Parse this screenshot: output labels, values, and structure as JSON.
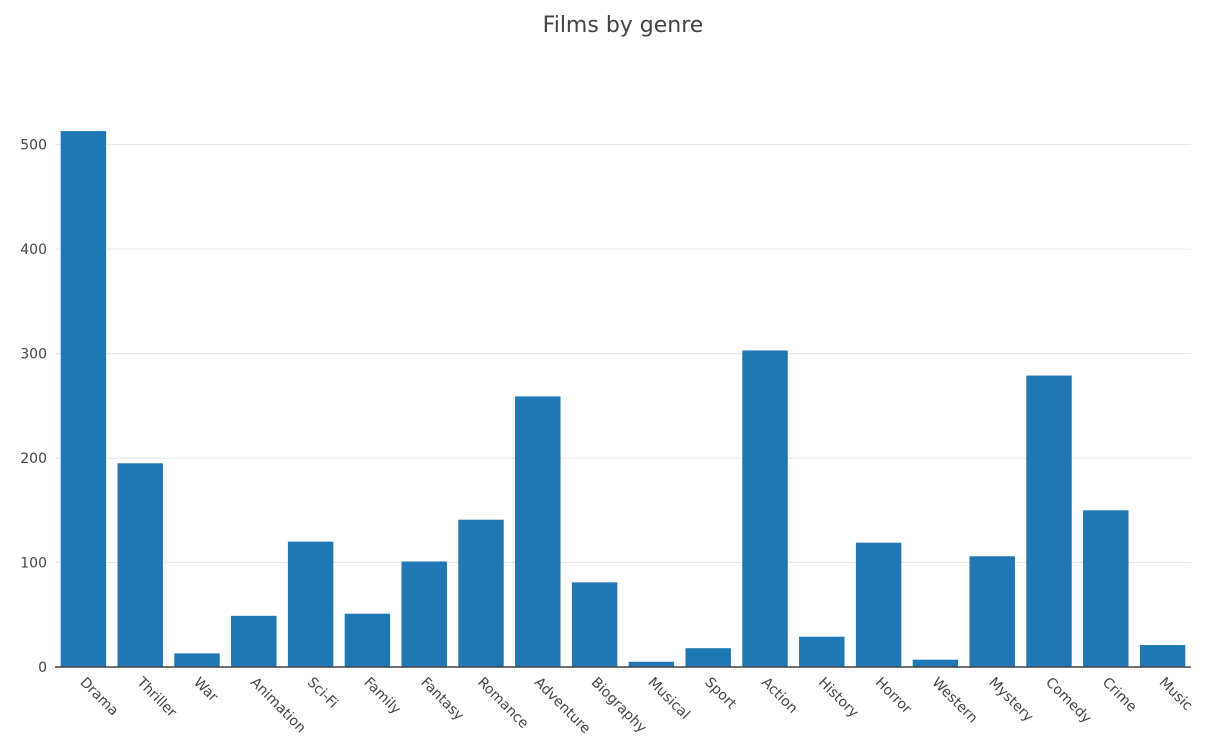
{
  "chart_data": {
    "type": "bar",
    "title": "Films by genre",
    "xlabel": "",
    "ylabel": "",
    "categories": [
      "Drama",
      "Thriller",
      "War",
      "Animation",
      "Sci-Fi",
      "Family",
      "Fantasy",
      "Romance",
      "Adventure",
      "Biography",
      "Musical",
      "Sport",
      "Action",
      "History",
      "Horror",
      "Western",
      "Mystery",
      "Comedy",
      "Crime",
      "Music"
    ],
    "values": [
      513,
      195,
      13,
      49,
      120,
      51,
      101,
      141,
      259,
      81,
      5,
      18,
      303,
      29,
      119,
      7,
      106,
      279,
      150,
      21
    ],
    "ylim": [
      0,
      560
    ],
    "yticks": [
      0,
      100,
      200,
      300,
      400,
      500
    ],
    "grid": true,
    "legend": "none",
    "bar_color": "#1f77b4"
  }
}
